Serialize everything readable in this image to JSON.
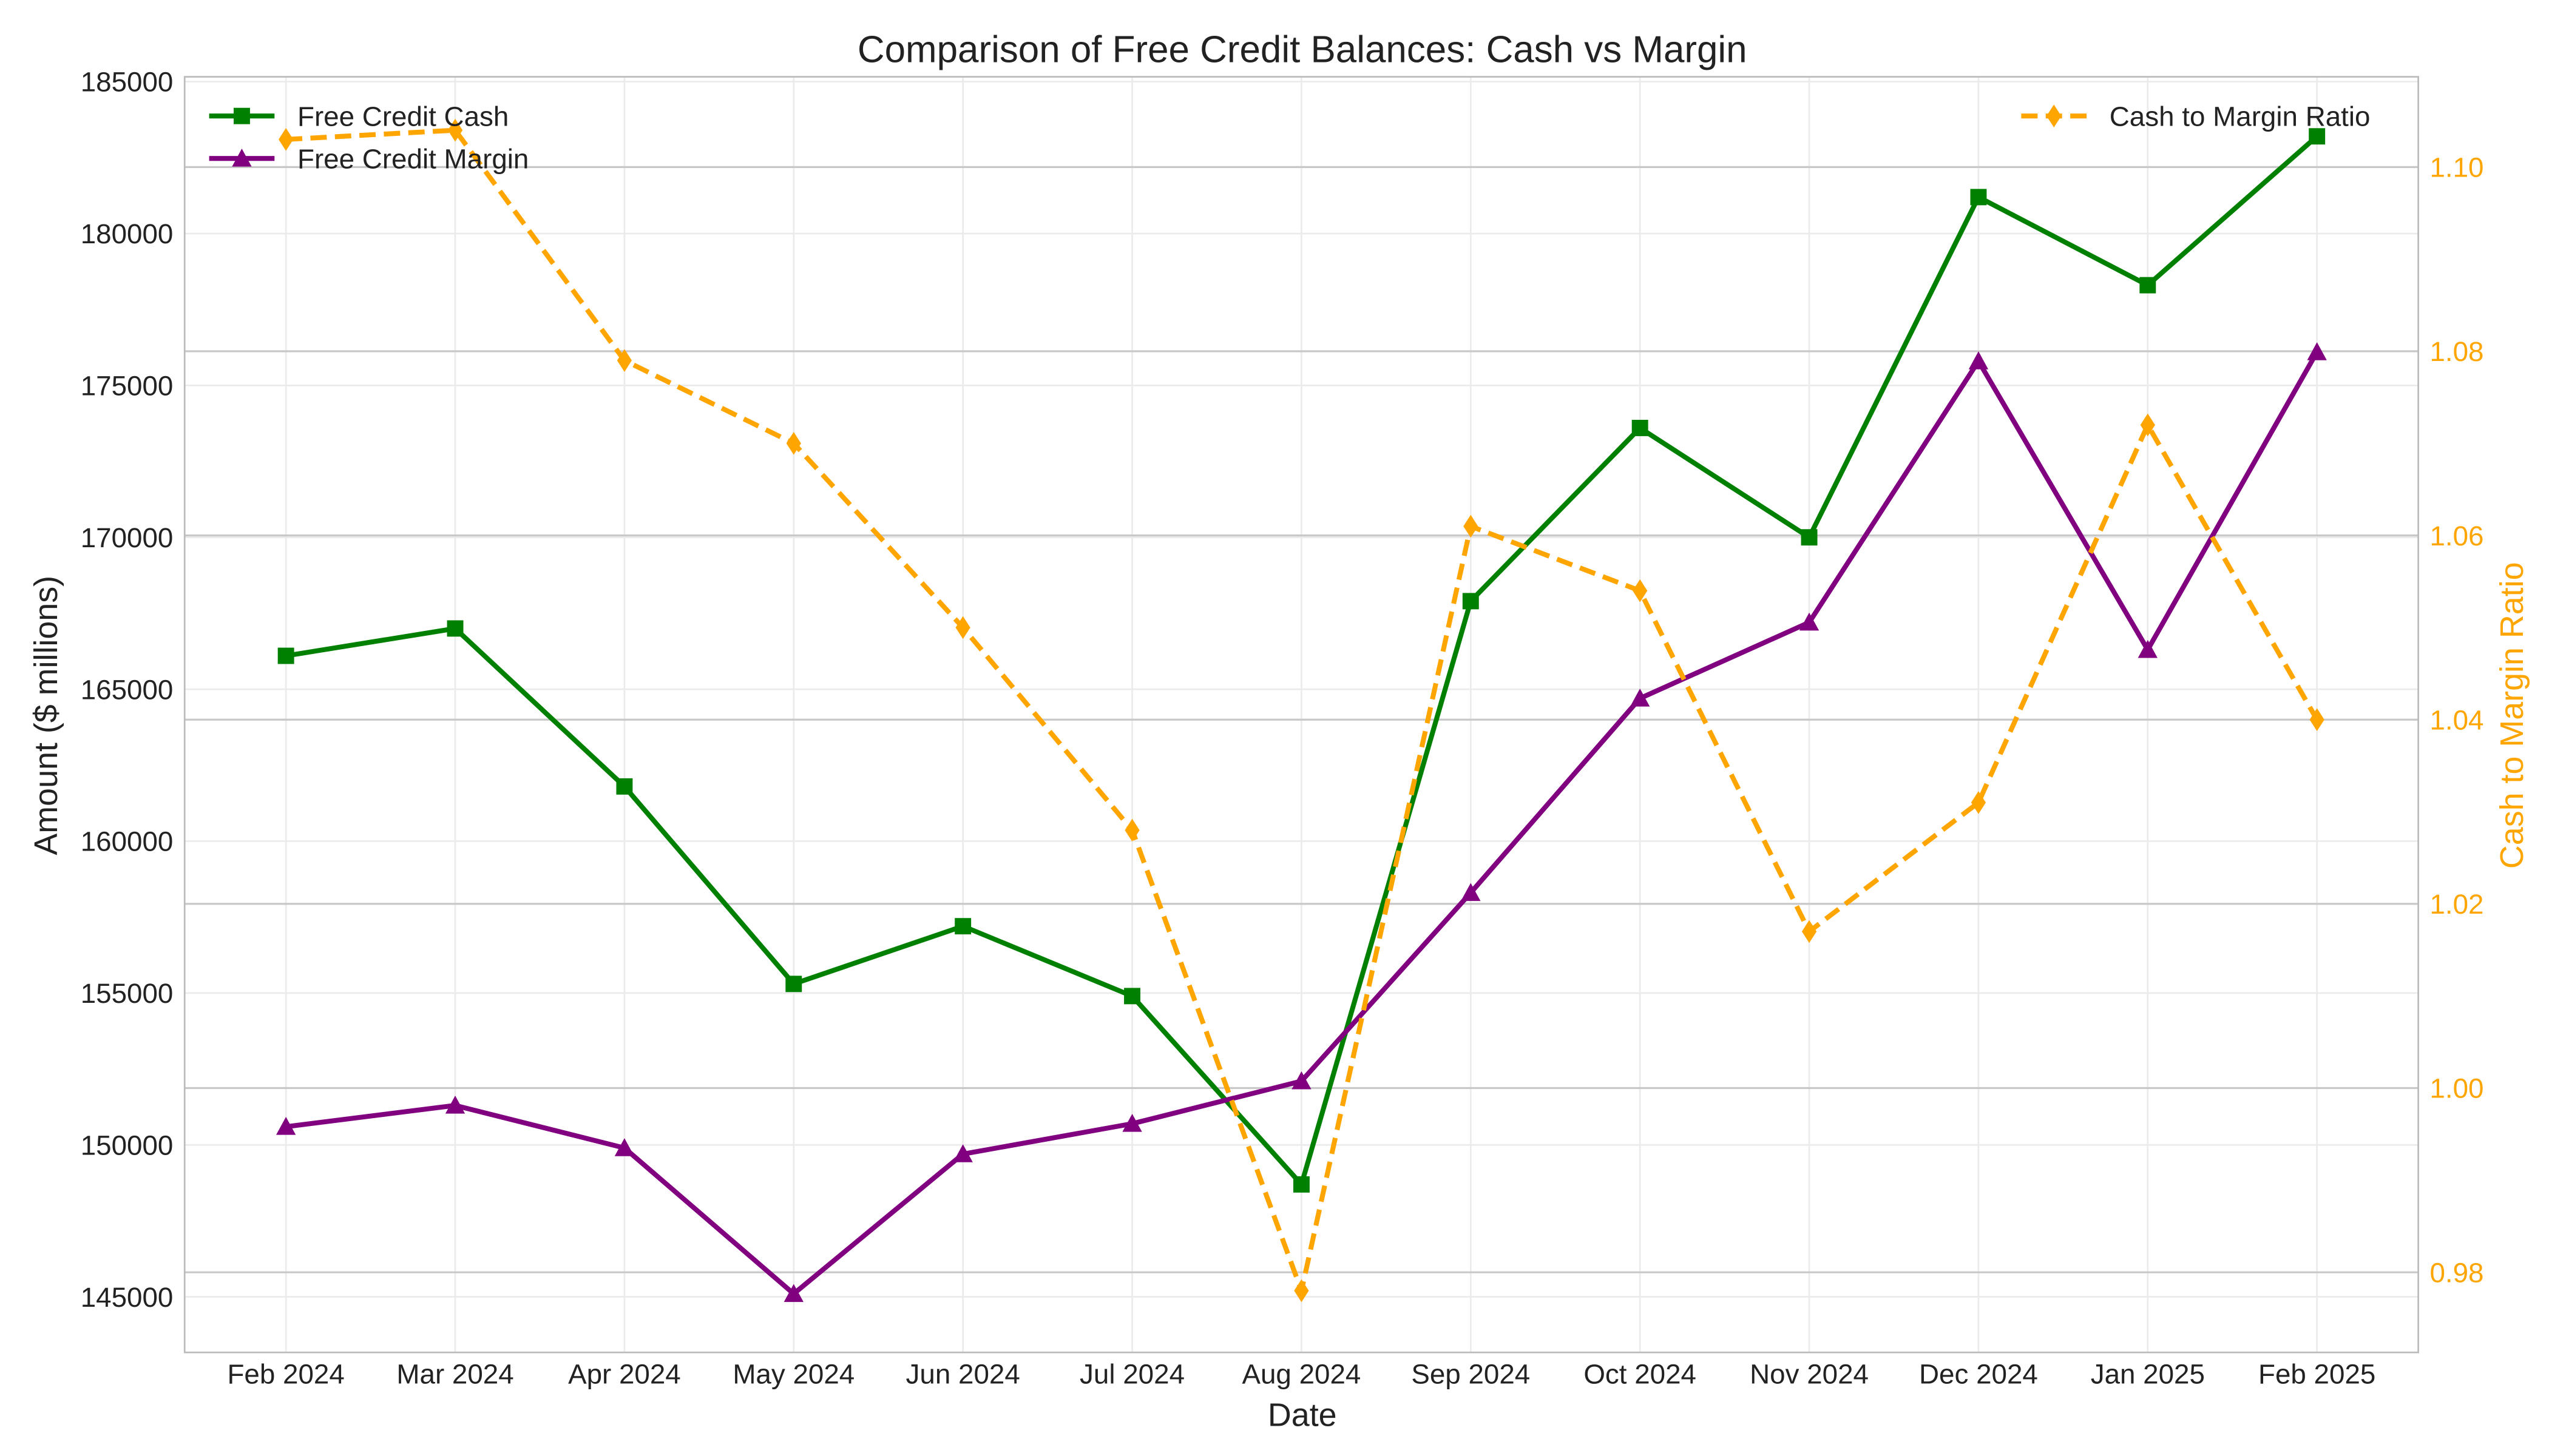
{
  "chart_data": {
    "type": "line",
    "title": "Comparison of Free Credit Balances: Cash vs Margin",
    "xlabel": "Date",
    "ylabel": "Amount ($ millions)",
    "y2label": "Cash to Margin Ratio",
    "categories": [
      "Feb 2024",
      "Mar 2024",
      "Apr 2024",
      "May 2024",
      "Jun 2024",
      "Jul 2024",
      "Aug 2024",
      "Sep 2024",
      "Oct 2024",
      "Nov 2024",
      "Dec 2024",
      "Jan 2025",
      "Feb 2025"
    ],
    "ylim": [
      143170,
      185160
    ],
    "y2lim": [
      0.9713,
      1.1098
    ],
    "yticks": [
      145000,
      150000,
      155000,
      160000,
      165000,
      170000,
      175000,
      180000,
      185000
    ],
    "y2ticks": [
      0.98,
      1.0,
      1.02,
      1.04,
      1.06,
      1.08,
      1.1
    ],
    "y2tick_labels": [
      "0.98",
      "1.00",
      "1.02",
      "1.04",
      "1.06",
      "1.08",
      "1.10"
    ],
    "grid": true,
    "series": [
      {
        "name": "Free Credit Cash",
        "axis": "left",
        "color": "#008000",
        "marker": "square",
        "style": "solid",
        "values": [
          166100,
          167000,
          161800,
          155300,
          157200,
          154900,
          148700,
          167900,
          173600,
          170000,
          181200,
          178300,
          183200
        ]
      },
      {
        "name": "Free Credit Margin",
        "axis": "left",
        "color": "#800080",
        "marker": "triangle",
        "style": "solid",
        "values": [
          150600,
          151300,
          149900,
          145100,
          149700,
          150700,
          152100,
          158300,
          164700,
          167200,
          175800,
          166300,
          176100
        ]
      },
      {
        "name": "Cash to Margin Ratio",
        "axis": "right",
        "color": "#FFA500",
        "marker": "diamond",
        "style": "dashed",
        "values": [
          1.103,
          1.104,
          1.079,
          1.07,
          1.05,
          1.028,
          0.978,
          1.061,
          1.054,
          1.017,
          1.031,
          1.072,
          1.04
        ]
      }
    ],
    "legend": [
      {
        "placement": "top-left",
        "entries": [
          "Free Credit Cash",
          "Free Credit Margin"
        ]
      },
      {
        "placement": "top-right",
        "entries": [
          "Cash to Margin Ratio"
        ]
      }
    ]
  }
}
